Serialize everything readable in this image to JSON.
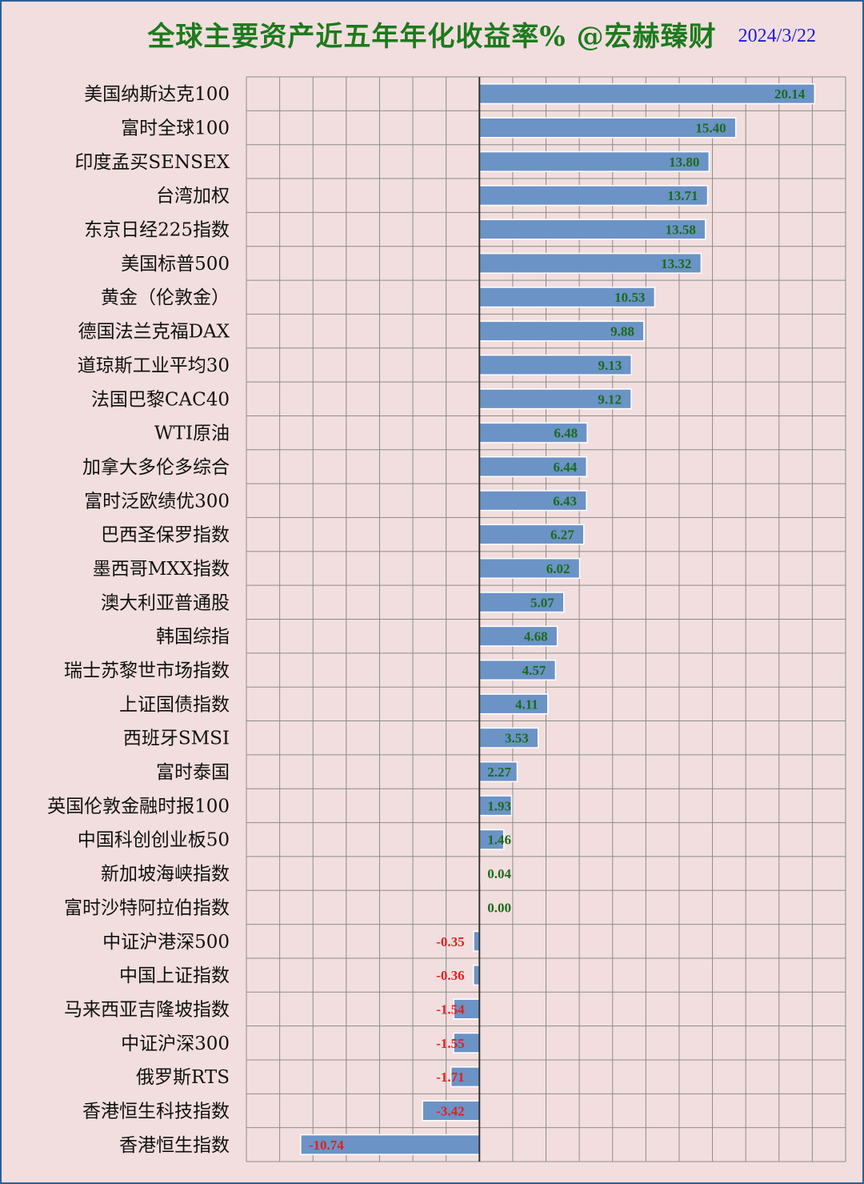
{
  "title": "全球主要资产近五年年化收益率% @宏赫臻财",
  "date": "2024/3/22",
  "colors": {
    "bar": "#6b93c6",
    "positive_label": "#1b6b1b",
    "negative_label": "#e02020",
    "grid": "#8c8c8c",
    "background": "#f2dede",
    "title": "#1d7a1d",
    "date": "#1a1adf"
  },
  "chart_data": {
    "type": "bar",
    "orientation": "horizontal",
    "xlim": [
      -14,
      22
    ],
    "grid": true,
    "categories": [
      "美国纳斯达克100",
      "富时全球100",
      "印度孟买SENSEX",
      "台湾加权",
      "东京日经225指数",
      "美国标普500",
      "黄金（伦敦金）",
      "德国法兰克福DAX",
      "道琼斯工业平均30",
      "法国巴黎CAC40",
      "WTI原油",
      "加拿大多伦多综合",
      "富时泛欧绩优300",
      "巴西圣保罗指数",
      "墨西哥MXX指数",
      "澳大利亚普通股",
      "韩国综指",
      "瑞士苏黎世市场指数",
      "上证国债指数",
      "西班牙SMSI",
      "富时泰国",
      "英国伦敦金融时报100",
      "中国科创创业板50",
      "新加坡海峡指数",
      "富时沙特阿拉伯指数",
      "中证沪港深500",
      "中国上证指数",
      "马来西亚吉隆坡指数",
      "中证沪深300",
      "俄罗斯RTS",
      "香港恒生科技指数",
      "香港恒生指数"
    ],
    "values": [
      20.14,
      15.4,
      13.8,
      13.71,
      13.58,
      13.32,
      10.53,
      9.88,
      9.13,
      9.12,
      6.48,
      6.44,
      6.43,
      6.27,
      6.02,
      5.07,
      4.68,
      4.57,
      4.11,
      3.53,
      2.27,
      1.93,
      1.46,
      0.04,
      0.0,
      -0.35,
      -0.36,
      -1.54,
      -1.55,
      -1.71,
      -3.42,
      -10.74
    ],
    "value_labels": [
      "20.14",
      "15.40",
      "13.80",
      "13.71",
      "13.58",
      "13.32",
      "10.53",
      "9.88",
      "9.13",
      "9.12",
      "6.48",
      "6.44",
      "6.43",
      "6.27",
      "6.02",
      "5.07",
      "4.68",
      "4.57",
      "4.11",
      "3.53",
      "2.27",
      "1.93",
      "1.46",
      "0.04",
      "0.00",
      "-0.35",
      "-0.36",
      "-1.54",
      "-1.55",
      "-1.71",
      "-3.42",
      "-10.74"
    ]
  }
}
